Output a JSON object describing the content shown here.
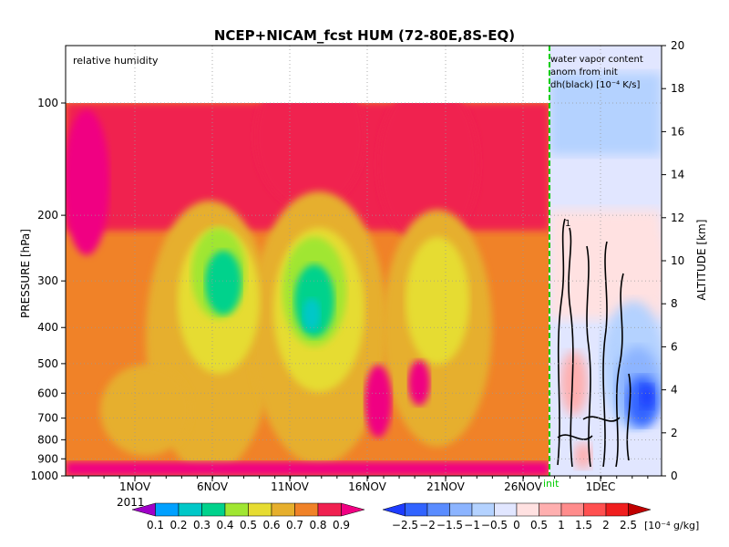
{
  "chart_data": [
    {
      "type": "heatmap",
      "title": "NCEP+NICAM_fcst HUM (72-80E,8S-EQ)",
      "panel_label": "relative humidity",
      "ylabel": "PRESSURE [hPa]",
      "y2label": "ALTITUDE [km]",
      "y_ticks": [
        "100",
        "200",
        "300",
        "400",
        "500",
        "600",
        "700",
        "800",
        "900",
        "1000"
      ],
      "y2_ticks": [
        "0",
        "2",
        "4",
        "6",
        "8",
        "10",
        "12",
        "14",
        "16",
        "18",
        "20"
      ],
      "x_ticks": [
        "1NOV",
        "6NOV",
        "11NOV",
        "16NOV",
        "21NOV",
        "26NOV",
        "1DEC"
      ],
      "x_year": "2011",
      "init_marker": "init",
      "grid": true,
      "colorbar": {
        "ticks": [
          "0.1",
          "0.2",
          "0.3",
          "0.4",
          "0.5",
          "0.6",
          "0.7",
          "0.8",
          "0.9"
        ],
        "colors": [
          "#a000c8",
          "#00a0ff",
          "#00c8c8",
          "#00d28c",
          "#a0e632",
          "#e6dc32",
          "#e6af2d",
          "#f08228",
          "#f02050",
          "#f00082"
        ]
      }
    },
    {
      "type": "heatmap",
      "panel_label": [
        "water vapor content",
        "anom from init",
        "dh(black) [10⁻⁴ K/s]"
      ],
      "contour_label": "1",
      "colorbar": {
        "ticks": [
          "−2.5",
          "−2",
          "−1.5",
          "−1",
          "−0.5",
          "0",
          "0.5",
          "1",
          "1.5",
          "2",
          "2.5"
        ],
        "unit": "[10⁻⁴ g/kg]",
        "colors": [
          "#1e3cff",
          "#3264ff",
          "#5a8cff",
          "#8cb4ff",
          "#b4d2ff",
          "#e1e6ff",
          "#ffe1e1",
          "#ffafaf",
          "#ff8c8c",
          "#ff5050",
          "#f01e1e",
          "#c00000"
        ]
      }
    }
  ]
}
